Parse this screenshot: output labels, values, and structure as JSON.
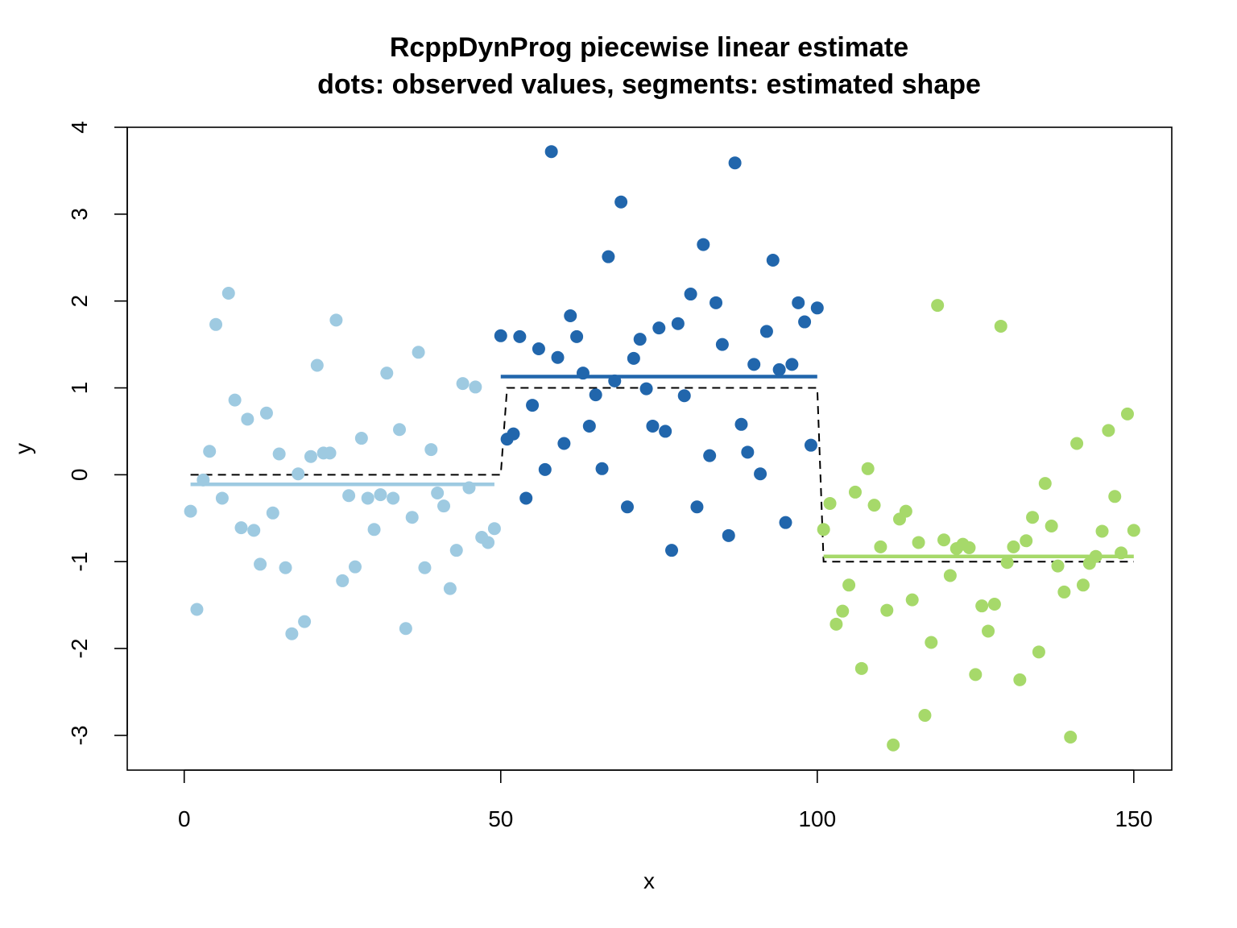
{
  "chart_data": {
    "type": "scatter",
    "title": "RcppDynProg piecewise linear estimate",
    "subtitle": "dots: observed values, segments: estimated shape",
    "xlabel": "x",
    "ylabel": "y",
    "xlim": [
      -9,
      156
    ],
    "ylim": [
      -3.4,
      4
    ],
    "x_ticks": [
      0,
      50,
      100,
      150
    ],
    "x_tick_labels": [
      "0",
      "50",
      "100",
      "150"
    ],
    "y_ticks": [
      -3,
      -2,
      -1,
      0,
      1,
      2,
      3,
      4
    ],
    "y_tick_labels": [
      "-3",
      "-2",
      "-1",
      "0",
      "1",
      "2",
      "3",
      "4"
    ],
    "grid": false,
    "legend": "none",
    "series": [
      {
        "color": "#9ecae1",
        "x": [
          1,
          2,
          3,
          4,
          5,
          6,
          7,
          8,
          9,
          10,
          11,
          12,
          13,
          14,
          15,
          16,
          17,
          18,
          19,
          20,
          21,
          22,
          23,
          24,
          25,
          26,
          27,
          28,
          29,
          30,
          31,
          32,
          33,
          34,
          35,
          36,
          37,
          38,
          39,
          40,
          41,
          42,
          43,
          44,
          45,
          46,
          47,
          48,
          49
        ],
        "y": [
          -0.42,
          -1.55,
          -0.06,
          0.27,
          1.73,
          -0.27,
          2.09,
          0.86,
          -0.61,
          0.64,
          -0.64,
          -1.03,
          0.71,
          -0.44,
          0.24,
          -1.07,
          -1.83,
          0.01,
          -1.69,
          0.21,
          1.26,
          0.25,
          0.25,
          1.78,
          -1.22,
          -0.24,
          -1.06,
          0.42,
          -0.27,
          -0.63,
          -0.23,
          1.17,
          -0.27,
          0.52,
          -1.77,
          -0.49,
          1.41,
          -1.07,
          0.29,
          -0.21,
          -0.36,
          -1.31,
          -0.87,
          1.05,
          -0.15,
          1.01,
          -0.72,
          -0.78,
          -0.62
        ]
      },
      {
        "color": "#2166ac",
        "x": [
          50,
          51,
          52,
          53,
          54,
          55,
          56,
          57,
          58,
          59,
          60,
          61,
          62,
          63,
          64,
          65,
          66,
          67,
          68,
          69,
          70,
          71,
          72,
          73,
          74,
          75,
          76,
          77,
          78,
          79,
          80,
          81,
          82,
          83,
          84,
          85,
          86,
          87,
          88,
          89,
          90,
          91,
          92,
          93,
          94,
          95,
          96,
          97,
          98,
          99,
          100
        ],
        "y": [
          1.6,
          0.41,
          0.47,
          1.59,
          -0.27,
          0.8,
          1.45,
          0.06,
          3.72,
          1.35,
          0.36,
          1.83,
          1.59,
          1.17,
          0.56,
          0.92,
          0.07,
          2.51,
          1.08,
          3.14,
          -0.37,
          1.34,
          1.56,
          0.99,
          0.56,
          1.69,
          0.5,
          -0.87,
          1.74,
          0.91,
          2.08,
          -0.37,
          2.65,
          0.22,
          1.98,
          1.5,
          -0.7,
          3.59,
          0.58,
          0.26,
          1.27,
          0.01,
          1.65,
          2.47,
          1.21,
          -0.55,
          1.27,
          1.98,
          1.76,
          0.34,
          1.92
        ]
      },
      {
        "color": "#a6d96a",
        "x": [
          101,
          102,
          103,
          104,
          105,
          106,
          107,
          108,
          109,
          110,
          111,
          112,
          113,
          114,
          115,
          116,
          117,
          118,
          119,
          120,
          121,
          122,
          123,
          124,
          125,
          126,
          127,
          128,
          129,
          130,
          131,
          132,
          133,
          134,
          135,
          136,
          137,
          138,
          139,
          140,
          141,
          142,
          143,
          144,
          145,
          146,
          147,
          148,
          149,
          150
        ],
        "y": [
          -0.63,
          -0.33,
          -1.72,
          -1.57,
          -1.27,
          -0.2,
          -2.23,
          0.07,
          -0.35,
          -0.83,
          -1.56,
          -3.11,
          -0.51,
          -0.42,
          -1.44,
          -0.78,
          -2.77,
          -1.93,
          1.95,
          -0.75,
          -1.16,
          -0.85,
          -0.8,
          -0.84,
          -2.3,
          -1.51,
          -1.8,
          -1.49,
          1.71,
          -1.01,
          -0.83,
          -2.36,
          -0.76,
          -0.49,
          -2.04,
          -0.1,
          -0.59,
          -1.05,
          -1.35,
          -3.02,
          0.36,
          -1.27,
          -1.02,
          -0.94,
          -0.65,
          0.51,
          -0.25,
          -0.9,
          0.7,
          -0.64
        ]
      }
    ],
    "segments": [
      {
        "color": "#9ecae1",
        "x": [
          1,
          49
        ],
        "y": [
          -0.11,
          -0.11
        ]
      },
      {
        "color": "#2166ac",
        "x": [
          50,
          100
        ],
        "y": [
          1.13,
          1.13
        ]
      },
      {
        "color": "#a6d96a",
        "x": [
          101,
          150
        ],
        "y": [
          -0.94,
          -0.94
        ]
      }
    ],
    "true_shape": {
      "color": "#000000",
      "style": "dashed",
      "x": [
        1,
        50,
        51,
        100,
        101,
        150
      ],
      "y": [
        0,
        0,
        1,
        1,
        -1,
        -1
      ]
    }
  }
}
